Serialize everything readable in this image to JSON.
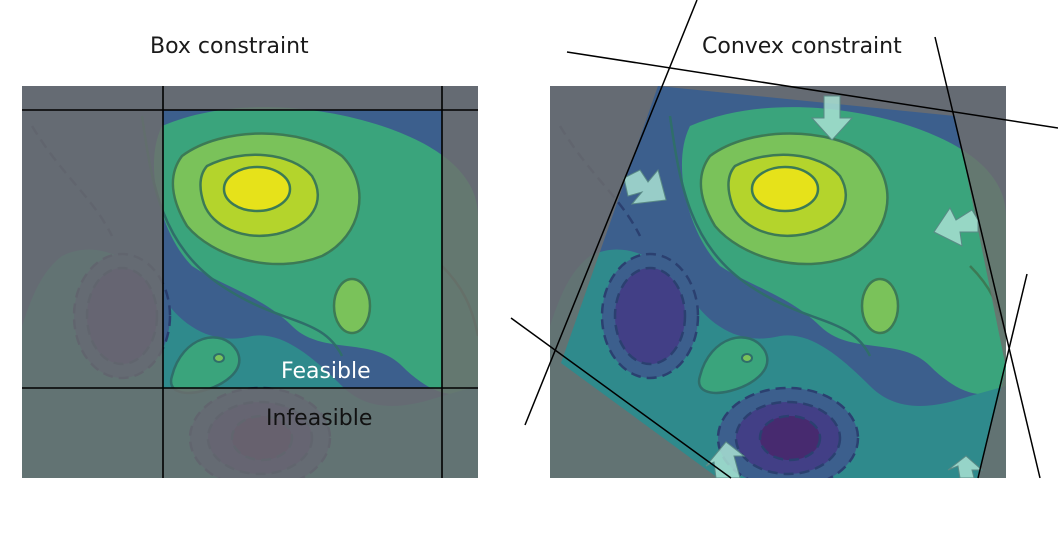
{
  "panels": {
    "left": {
      "title": "Box constraint",
      "feasible_label": "Feasible",
      "infeasible_label": "Infeasible"
    },
    "right": {
      "title": "Convex constraint"
    }
  },
  "colors": {
    "infeasible_shade": "#6e6e6e",
    "constraint_line": "#000000",
    "level_1": "#423f86",
    "level_2": "#3c5f8d",
    "level_3": "#2f8a8c",
    "level_4": "#3aa47c",
    "level_5": "#7ac25a",
    "level_6": "#b4d42c",
    "peak": "#e6e21a",
    "arrow": "#a8e0d2"
  }
}
